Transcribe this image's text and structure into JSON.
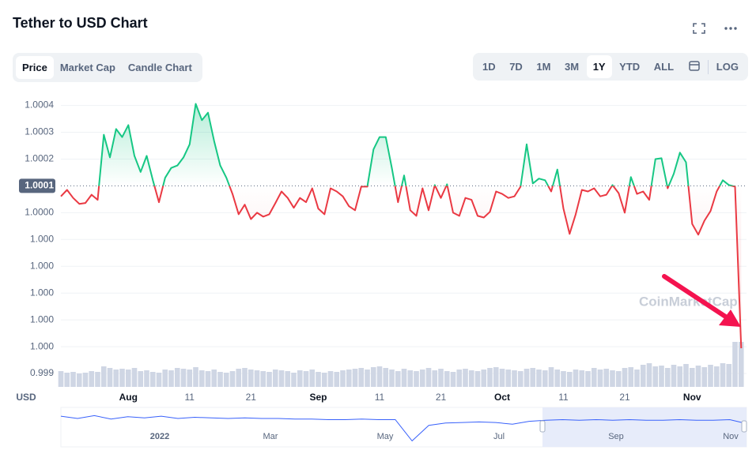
{
  "header": {
    "title": "Tether to USD Chart",
    "tabs": [
      "Price",
      "Market Cap",
      "Candle Chart"
    ],
    "ranges": [
      "1D",
      "7D",
      "1M",
      "3M",
      "1Y",
      "YTD",
      "ALL"
    ],
    "log": "LOG"
  },
  "chart_data": {
    "type": "line",
    "currency": "USD",
    "watermark": "CoinMarketCap",
    "baseline": 1.0001,
    "grid": true,
    "up_color": "#16c784",
    "down_color": "#ea3943",
    "volume_color": "#cfd6e4",
    "ylim": [
      0.99935,
      1.00044
    ],
    "yticks": [
      1.0004,
      1.0003,
      1.0002,
      1.0001,
      {
        "value": 1.0,
        "label": "1.0000"
      },
      {
        "value": 0.9999,
        "label": "1.000"
      },
      {
        "value": 0.9998,
        "label": "1.000"
      },
      {
        "value": 0.9997,
        "label": "1.000"
      },
      {
        "value": 0.9996,
        "label": "1.000"
      },
      {
        "value": 0.9995,
        "label": "1.000"
      },
      {
        "value": 0.9994,
        "label": "0.999"
      }
    ],
    "xticks": [
      {
        "value": "Aug 1",
        "label": "Aug"
      },
      {
        "value": "Aug 11",
        "label": "11"
      },
      {
        "value": "Aug 21",
        "label": "21"
      },
      {
        "value": "Sep 1",
        "label": "Sep"
      },
      {
        "value": "Sep 11",
        "label": "11"
      },
      {
        "value": "Sep 21",
        "label": "21"
      },
      {
        "value": "Oct 1",
        "label": "Oct"
      },
      {
        "value": "Oct 11",
        "label": "11"
      },
      {
        "value": "Oct 21",
        "label": "21"
      },
      {
        "value": "Nov 1",
        "label": "Nov"
      }
    ],
    "x": [
      "Jul 21",
      "Jul 22",
      "Jul 23",
      "Jul 24",
      "Jul 25",
      "Jul 26",
      "Jul 27",
      "Jul 28",
      "Jul 29",
      "Jul 30",
      "Jul 31",
      "Aug 1",
      "Aug 2",
      "Aug 3",
      "Aug 4",
      "Aug 5",
      "Aug 6",
      "Aug 7",
      "Aug 8",
      "Aug 9",
      "Aug 10",
      "Aug 11",
      "Aug 12",
      "Aug 13",
      "Aug 14",
      "Aug 15",
      "Aug 16",
      "Aug 17",
      "Aug 18",
      "Aug 19",
      "Aug 20",
      "Aug 21",
      "Aug 22",
      "Aug 23",
      "Aug 24",
      "Aug 25",
      "Aug 26",
      "Aug 27",
      "Aug 28",
      "Aug 29",
      "Aug 30",
      "Aug 31",
      "Sep 1",
      "Sep 2",
      "Sep 3",
      "Sep 4",
      "Sep 5",
      "Sep 6",
      "Sep 7",
      "Sep 8",
      "Sep 9",
      "Sep 10",
      "Sep 11",
      "Sep 12",
      "Sep 13",
      "Sep 14",
      "Sep 15",
      "Sep 16",
      "Sep 17",
      "Sep 18",
      "Sep 19",
      "Sep 20",
      "Sep 21",
      "Sep 22",
      "Sep 23",
      "Sep 24",
      "Sep 25",
      "Sep 26",
      "Sep 27",
      "Sep 28",
      "Sep 29",
      "Sep 30",
      "Oct 1",
      "Oct 2",
      "Oct 3",
      "Oct 4",
      "Oct 5",
      "Oct 6",
      "Oct 7",
      "Oct 8",
      "Oct 9",
      "Oct 10",
      "Oct 11",
      "Oct 12",
      "Oct 13",
      "Oct 14",
      "Oct 15",
      "Oct 16",
      "Oct 17",
      "Oct 18",
      "Oct 19",
      "Oct 20",
      "Oct 21",
      "Oct 22",
      "Oct 23",
      "Oct 24",
      "Oct 25",
      "Oct 26",
      "Oct 27",
      "Oct 28",
      "Oct 29",
      "Oct 30",
      "Oct 31",
      "Nov 1",
      "Nov 2",
      "Nov 3",
      "Nov 4",
      "Nov 5",
      "Nov 6",
      "Nov 7",
      "Nov 8",
      "Nov 9"
    ],
    "values": [
      1.000061,
      1.000085,
      1.000055,
      1.000033,
      1.000036,
      1.000067,
      1.000048,
      1.000291,
      1.000206,
      1.000312,
      1.000282,
      1.000327,
      1.000212,
      1.000152,
      1.000212,
      1.000121,
      1.000039,
      1.00013,
      1.000167,
      1.000176,
      1.000206,
      1.000255,
      1.000406,
      1.000345,
      1.000373,
      1.000267,
      1.000176,
      1.00013,
      1.00007,
      0.999994,
      1.00003,
      0.999976,
      1.0,
      0.999985,
      0.999994,
      1.000036,
      1.000079,
      1.000055,
      1.000018,
      1.000055,
      1.000039,
      1.000091,
      1.000015,
      0.999994,
      1.000091,
      1.000079,
      1.000061,
      1.000024,
      1.000009,
      1.000097,
      1.000097,
      1.000236,
      1.000282,
      1.000282,
      1.000167,
      1.000039,
      1.000139,
      1.000009,
      0.999988,
      1.000091,
      1.000009,
      1.000103,
      1.000055,
      1.000106,
      1.0,
      0.999988,
      1.000055,
      1.000048,
      0.999988,
      0.999982,
      1.000003,
      1.000079,
      1.00007,
      1.000055,
      1.000061,
      1.000097,
      1.000255,
      1.000109,
      1.000127,
      1.000121,
      1.000079,
      1.000161,
      1.000015,
      0.999921,
      0.999994,
      1.000085,
      1.000079,
      1.000091,
      1.000061,
      1.000067,
      1.000103,
      1.000073,
      1.0,
      1.000133,
      1.00007,
      1.000079,
      1.000048,
      1.0002,
      1.000203,
      1.000091,
      1.000145,
      1.000224,
      1.000188,
      0.999958,
      0.999918,
      0.99997,
      1.000006,
      1.000079,
      1.000121,
      1.000103,
      1.000097,
      0.999494
    ],
    "volume_lim": [
      0,
      60
    ],
    "volume": [
      20,
      18,
      19,
      17,
      18,
      20,
      19,
      26,
      24,
      22,
      23,
      22,
      24,
      20,
      21,
      19,
      18,
      22,
      21,
      24,
      23,
      22,
      25,
      21,
      20,
      22,
      19,
      18,
      20,
      23,
      24,
      22,
      21,
      20,
      19,
      22,
      21,
      20,
      18,
      21,
      20,
      22,
      19,
      18,
      20,
      19,
      21,
      22,
      23,
      24,
      22,
      25,
      26,
      24,
      22,
      20,
      23,
      21,
      20,
      22,
      24,
      21,
      23,
      20,
      19,
      22,
      23,
      21,
      20,
      22,
      24,
      25,
      23,
      22,
      21,
      20,
      23,
      24,
      22,
      21,
      25,
      22,
      20,
      19,
      22,
      21,
      20,
      24,
      22,
      23,
      21,
      20,
      24,
      25,
      22,
      28,
      30,
      26,
      27,
      24,
      28,
      26,
      29,
      24,
      27,
      25,
      28,
      26,
      30,
      29,
      57,
      57
    ]
  },
  "navigator": {
    "labels": [
      "2022",
      "Mar",
      "May",
      "Jul",
      "Sep",
      "Nov"
    ],
    "ylim": [
      0.996,
      1.0015
    ],
    "values": [
      1.0008,
      1.0004,
      1.0009,
      1.0003,
      1.0007,
      1.0005,
      1.0008,
      1.0004,
      1.0006,
      1.0005,
      1.0004,
      1.0005,
      1.0004,
      1.0004,
      1.0003,
      1.0003,
      1.0002,
      1.0002,
      1.0003,
      1.0002,
      1.0002,
      0.9965,
      0.9992,
      0.9996,
      0.9997,
      0.9998,
      0.9997,
      0.9994,
      0.9999,
      1.0001,
      1.0002,
      1.0001,
      1.0002,
      1.0001,
      1.0002,
      1.0001,
      1.0001,
      1.0002,
      1.0001,
      1.0001,
      1.0002,
      0.9995
    ]
  }
}
